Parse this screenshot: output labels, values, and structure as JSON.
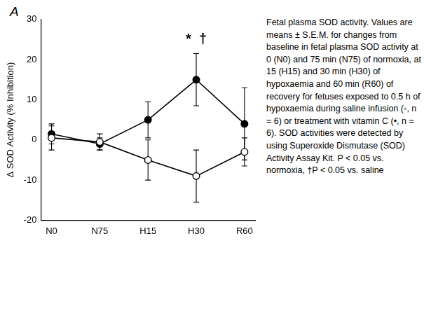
{
  "chart_data": {
    "type": "line",
    "panel_label": "A",
    "y_label": "Δ SOD Activity (% Inhibition)",
    "categories": [
      "N0",
      "N75",
      "H15",
      "H30",
      "R60"
    ],
    "series": [
      {
        "color": "#000000",
        "marker": "circle_open",
        "values": [
          0.5,
          -0.5,
          -5,
          -9,
          -3
        ],
        "errors": [
          3,
          2,
          5,
          6.5,
          3.5
        ]
      },
      {
        "color": "#000000",
        "marker": "circle",
        "values": [
          1.5,
          -1,
          5,
          15,
          4
        ],
        "errors": [
          2.5,
          1.5,
          4.5,
          6.5,
          9
        ]
      }
    ],
    "ylim": [
      -20,
      30
    ],
    "yticks": [
      -20,
      -10,
      0,
      10,
      20,
      30
    ],
    "grid": false,
    "annotations": [
      {
        "text": "*  †",
        "x": "H30",
        "y": 25
      }
    ],
    "caption": "Fetal plasma SOD activity. Values are means ± S.E.M. for changes from baseline in fetal plasma SOD activity at 0 (N0) and 75 min (N75) of normoxia, at 15 (H15) and 30 min (H30) of hypoxaemia and 60 min (R60) of recovery for fetuses exposed to 0.5 h of hypoxaemia during saline infusion (◦, n = 6) or treatment with vitamin C (•, n = 6). SOD activities were detected by using Superoxide Dismutase (SOD) Activity Assay Kit.  P < 0.05 vs. normoxia, †P < 0.05 vs. saline"
  }
}
